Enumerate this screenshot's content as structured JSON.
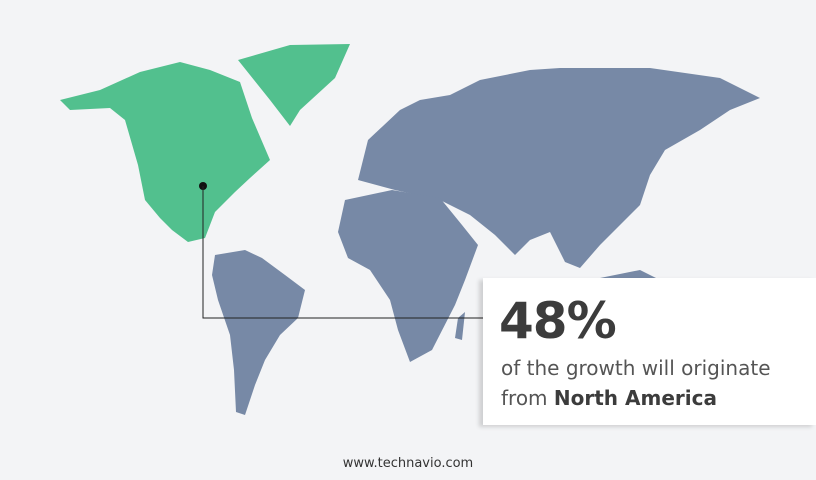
{
  "colors": {
    "highlight": "#52c08e",
    "other": "#7789a6",
    "background": "#f3f4f6"
  },
  "highlighted_region": "North America",
  "callout": {
    "percent": "48%",
    "line1": "of the growth will originate",
    "line2_prefix": "from",
    "line2_region": "North America"
  },
  "footer": "www.technavio.com"
}
